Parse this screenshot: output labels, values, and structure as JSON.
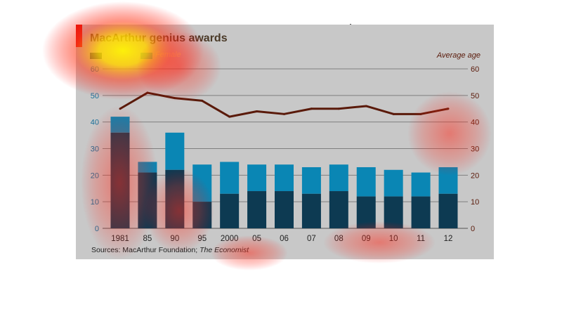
{
  "title": "MacArthur genius awards",
  "legend": {
    "male_label": "",
    "female_label": "Female"
  },
  "right_axis_label": "Average age",
  "source": {
    "prefix": "Sources: MacArthur Foundation; ",
    "italic": "The Economist"
  },
  "colors": {
    "panel": "#c8c8c8",
    "male_bar": "#0d3a52",
    "female_bar": "#0a86b4",
    "line": "#5a1a0a",
    "accent": "#e3120b"
  },
  "chart_data": {
    "type": "bar",
    "categories": [
      "1981",
      "85",
      "90",
      "95",
      "2000",
      "05",
      "06",
      "07",
      "08",
      "09",
      "10",
      "11",
      "12"
    ],
    "stacked": true,
    "series": [
      {
        "name": "",
        "values": [
          36,
          21,
          22,
          10,
          13,
          14,
          14,
          13,
          14,
          12,
          12,
          12,
          13
        ]
      },
      {
        "name": "Female",
        "values": [
          6,
          4,
          14,
          14,
          12,
          10,
          10,
          10,
          10,
          11,
          10,
          9,
          10
        ]
      }
    ],
    "line_series": {
      "name": "Average age",
      "axis": "right",
      "values": [
        45,
        51,
        49,
        48,
        42,
        44,
        43,
        45,
        45,
        46,
        43,
        43,
        45
      ]
    },
    "ylim": [
      0,
      60
    ],
    "yticks": [
      0,
      10,
      20,
      30,
      40,
      50,
      60
    ],
    "grid": true,
    "legend_position": "top-left"
  }
}
